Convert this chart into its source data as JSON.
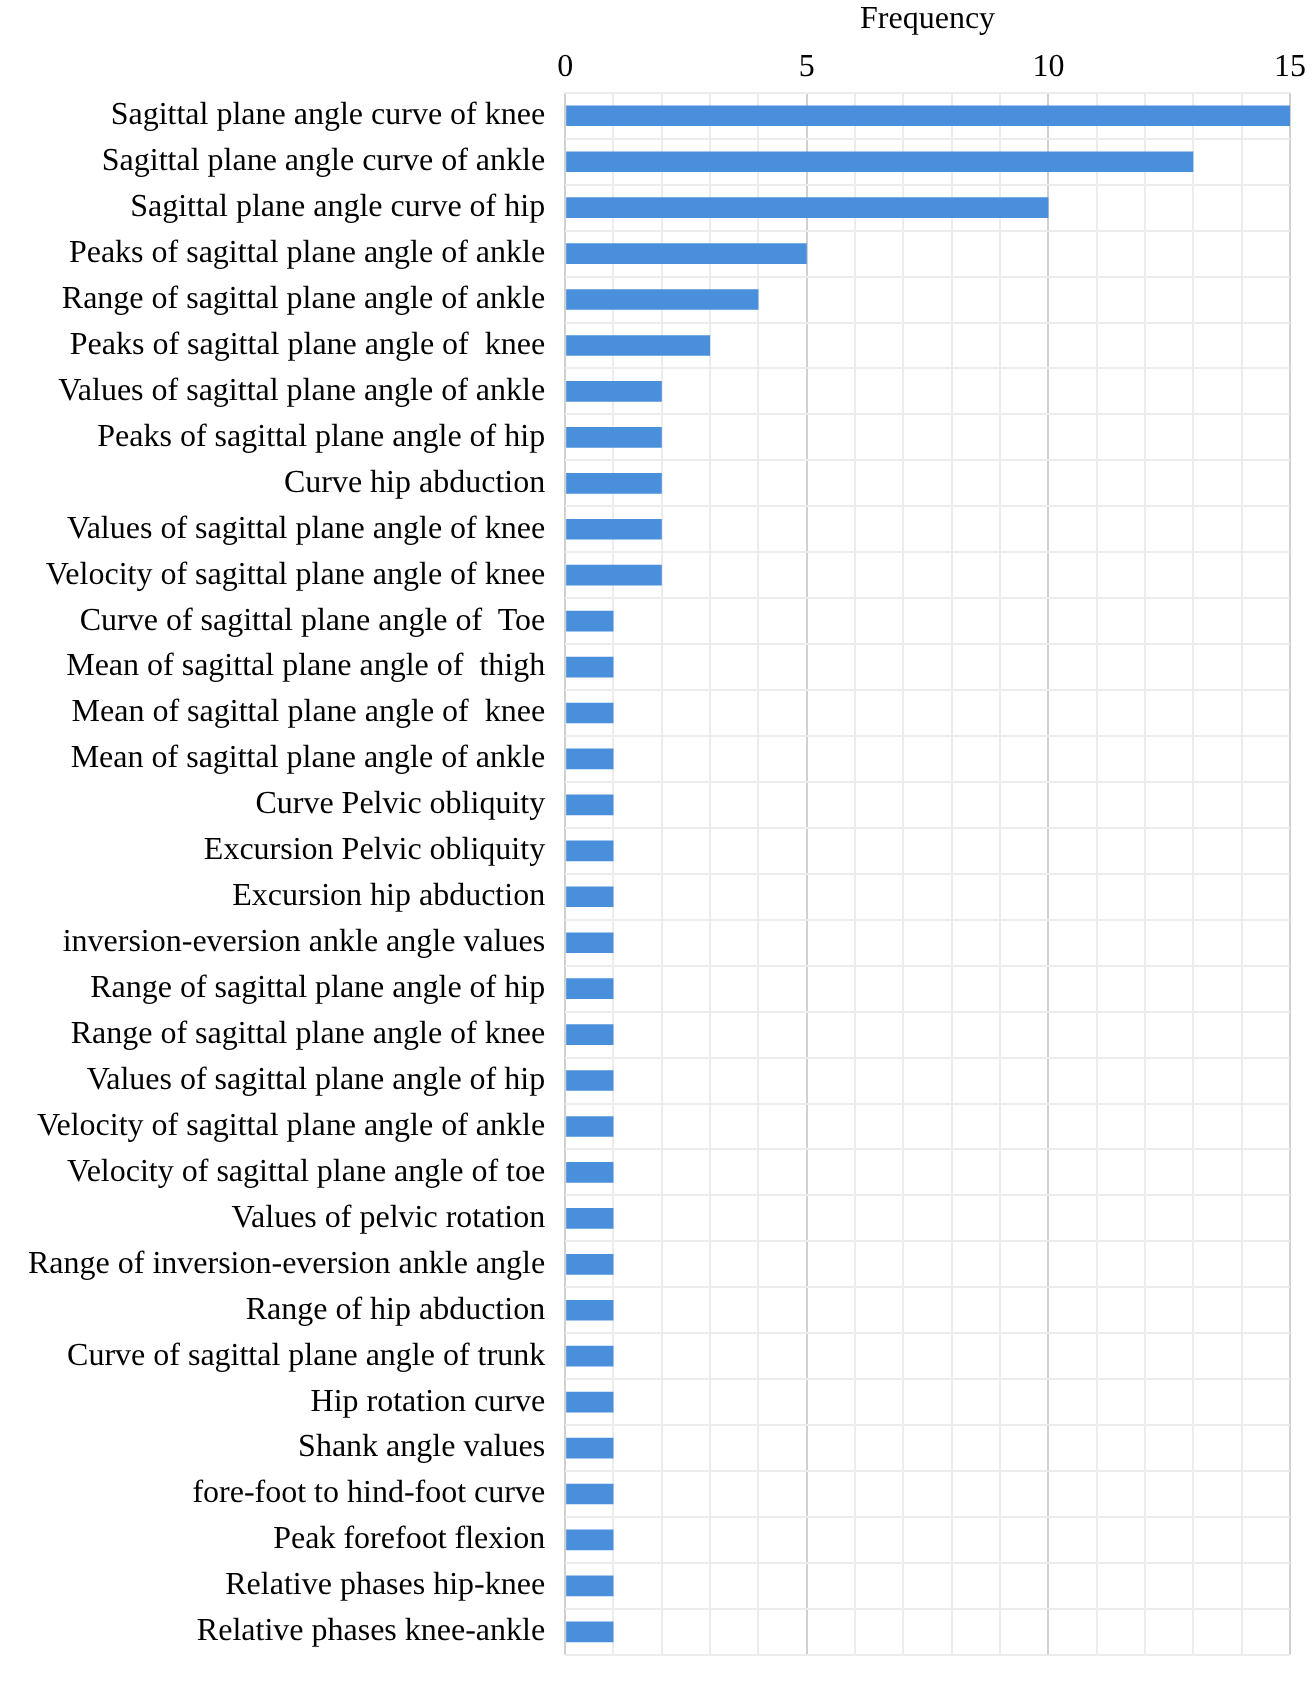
{
  "chart_data": {
    "type": "bar",
    "orientation": "horizontal",
    "xlabel": "Frequency",
    "categories": [
      "Sagittal plane angle curve of knee",
      "Sagittal plane angle curve of ankle",
      "Sagittal plane angle curve of hip",
      "Peaks of sagittal plane angle of ankle",
      "Range of sagittal plane angle of ankle",
      "Peaks of sagittal plane angle of  knee",
      "Values of sagittal plane angle of ankle",
      "Peaks of sagittal plane angle of hip",
      "Curve hip abduction",
      "Values of sagittal plane angle of knee",
      "Velocity of sagittal plane angle of knee",
      "Curve of sagittal plane angle of  Toe",
      "Mean of sagittal plane angle of  thigh",
      "Mean of sagittal plane angle of  knee",
      "Mean of sagittal plane angle of ankle",
      "Curve Pelvic obliquity",
      "Excursion Pelvic obliquity",
      "Excursion hip abduction",
      "inversion-eversion ankle angle values",
      "Range of sagittal plane angle of hip",
      "Range of sagittal plane angle of knee",
      "Values of sagittal plane angle of hip",
      "Velocity of sagittal plane angle of ankle",
      "Velocity of sagittal plane angle of toe",
      "Values of pelvic rotation",
      "Range of inversion-eversion ankle angle",
      "Range of hip abduction",
      "Curve of sagittal plane angle of trunk",
      "Hip rotation curve",
      "Shank angle values",
      "fore-foot to hind-foot curve",
      "Peak forefoot flexion",
      "Relative phases hip-knee",
      "Relative phases knee-ankle"
    ],
    "values": [
      15,
      13,
      10,
      5,
      4,
      3,
      2,
      2,
      2,
      2,
      2,
      1,
      1,
      1,
      1,
      1,
      1,
      1,
      1,
      1,
      1,
      1,
      1,
      1,
      1,
      1,
      1,
      1,
      1,
      1,
      1,
      1,
      1,
      1
    ],
    "color": "#4a8fdb",
    "xlim": [
      0,
      15
    ],
    "xticks": [
      0,
      {
        "value": 1,
        "label": null
      },
      {
        "value": 2,
        "label": null
      },
      {
        "value": 3,
        "label": null
      },
      {
        "value": 4,
        "label": null
      },
      5,
      {
        "value": 6,
        "label": null
      },
      {
        "value": 7,
        "label": null
      },
      {
        "value": 8,
        "label": null
      },
      {
        "value": 9,
        "label": null
      },
      10,
      {
        "value": 11,
        "label": null
      },
      {
        "value": 12,
        "label": null
      },
      {
        "value": 13,
        "label": null
      },
      {
        "value": 14,
        "label": null
      },
      15
    ],
    "grid": true,
    "legend": false
  }
}
